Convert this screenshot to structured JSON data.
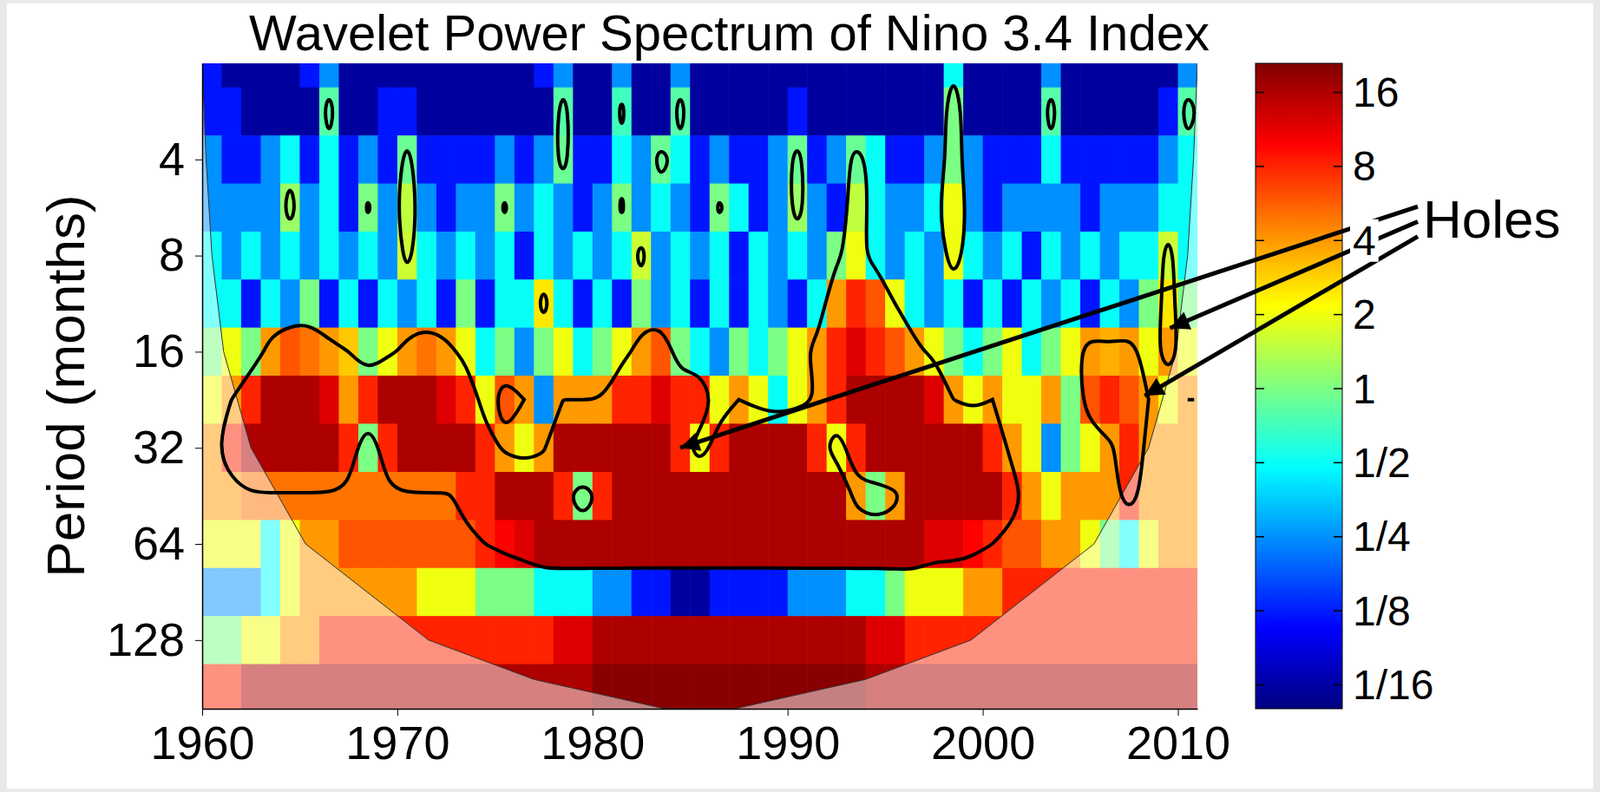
{
  "chart_data": {
    "type": "heatmap",
    "title": "Wavelet Power Spectrum of Nino 3.4 Index",
    "y_label": "Period (months)",
    "log": "y",
    "xlim": [
      1960,
      2011
    ],
    "xticks": [
      1960,
      1970,
      1980,
      1990,
      2000,
      2010
    ],
    "ylim": [
      2,
      210
    ],
    "yticks": [
      4,
      8,
      16,
      32,
      64,
      128
    ],
    "x": [
      1960.5,
      1961.5,
      1962.5,
      1963.5,
      1964.5,
      1965.5,
      1966.5,
      1967.5,
      1968.5,
      1969.5,
      1970.5,
      1971.5,
      1972.5,
      1973.5,
      1974.5,
      1975.5,
      1976.5,
      1977.5,
      1978.5,
      1979.5,
      1980.5,
      1981.5,
      1982.5,
      1983.5,
      1984.5,
      1985.5,
      1986.5,
      1987.5,
      1988.5,
      1989.5,
      1990.5,
      1991.5,
      1992.5,
      1993.5,
      1994.5,
      1995.5,
      1996.5,
      1997.5,
      1998.5,
      1999.5,
      2000.5,
      2001.5,
      2002.5,
      2003.5,
      2004.5,
      2005.5,
      2006.5,
      2007.5,
      2008.5,
      2009.5,
      2010.5
    ],
    "y": [
      2,
      2.83,
      4,
      5.66,
      8,
      11.3,
      16,
      22.6,
      32,
      45.3,
      64,
      90.5,
      128,
      181
    ],
    "values": [
      [
        0.12,
        0.06,
        0.06,
        0.06,
        0.06,
        0.12,
        0.25,
        0.06,
        0.06,
        0.06,
        0.06,
        0.06,
        0.06,
        0.06,
        0.06,
        0.06,
        0.06,
        0.12,
        0.25,
        0.06,
        0.06,
        0.25,
        0.06,
        0.06,
        0.25,
        0.06,
        0.06,
        0.06,
        0.06,
        0.06,
        0.06,
        0.06,
        0.06,
        0.06,
        0.06,
        0.06,
        0.06,
        0.06,
        0.5,
        0.06,
        0.06,
        0.06,
        0.06,
        0.25,
        0.06,
        0.06,
        0.06,
        0.06,
        0.06,
        0.06,
        0.25
      ],
      [
        0.12,
        0.12,
        0.06,
        0.06,
        0.06,
        0.06,
        0.8,
        0.06,
        0.06,
        0.12,
        0.12,
        0.06,
        0.06,
        0.06,
        0.06,
        0.06,
        0.06,
        0.06,
        0.8,
        0.06,
        0.06,
        0.7,
        0.06,
        0.06,
        0.8,
        0.06,
        0.06,
        0.06,
        0.06,
        0.06,
        0.12,
        0.06,
        0.06,
        0.06,
        0.06,
        0.06,
        0.06,
        0.06,
        1,
        0.06,
        0.06,
        0.06,
        0.06,
        0.8,
        0.06,
        0.06,
        0.06,
        0.06,
        0.06,
        0.12,
        0.8
      ],
      [
        0.25,
        0.12,
        0.12,
        0.25,
        0.5,
        0.12,
        0.5,
        0.12,
        0.25,
        0.12,
        0.9,
        0.12,
        0.12,
        0.12,
        0.12,
        0.25,
        0.12,
        0.25,
        0.9,
        0.12,
        0.12,
        0.5,
        0.25,
        0.9,
        0.5,
        0.12,
        0.25,
        0.12,
        0.12,
        0.25,
        0.9,
        0.12,
        0.25,
        0.9,
        0.5,
        0.12,
        0.12,
        0.25,
        1,
        0.25,
        0.12,
        0.12,
        0.12,
        0.5,
        0.12,
        0.12,
        0.12,
        0.12,
        0.12,
        0.25,
        0.5
      ],
      [
        0.25,
        0.25,
        0.25,
        0.25,
        1.2,
        0.25,
        0.5,
        0.12,
        1,
        0.25,
        1.5,
        0.25,
        0.12,
        0.25,
        0.25,
        1,
        0.25,
        0.5,
        0.25,
        0.12,
        0.25,
        1,
        0.25,
        0.5,
        0.25,
        0.12,
        1,
        0.5,
        0.12,
        0.25,
        1.2,
        0.25,
        0.12,
        1.5,
        0.5,
        0.25,
        0.25,
        0.5,
        2,
        0.25,
        0.12,
        0.25,
        0.25,
        0.25,
        0.25,
        0.12,
        0.25,
        0.25,
        0.25,
        0.5,
        0.5
      ],
      [
        0.5,
        0.25,
        0.5,
        0.25,
        0.5,
        0.25,
        0.5,
        0.25,
        0.5,
        0.25,
        1.6,
        0.5,
        0.25,
        0.5,
        0.25,
        0.5,
        0.12,
        0.5,
        0.25,
        0.5,
        0.25,
        0.5,
        1.6,
        0.25,
        0.5,
        0.25,
        0.5,
        0.12,
        0.5,
        0.25,
        0.5,
        0.25,
        1,
        2,
        0.5,
        0.25,
        0.5,
        0.25,
        2,
        0.5,
        0.25,
        0.5,
        0.12,
        0.5,
        0.25,
        0.5,
        0.25,
        0.5,
        0.5,
        1.6,
        0.5
      ],
      [
        0.5,
        0.5,
        0.12,
        0.5,
        0.25,
        1,
        0.12,
        0.5,
        0.12,
        0.5,
        0.25,
        0.5,
        0.12,
        1,
        0.12,
        0.5,
        0.5,
        2.5,
        0.5,
        0.12,
        0.5,
        0.12,
        1,
        0.25,
        0.5,
        0.12,
        0.5,
        0.12,
        0.5,
        0.25,
        0.12,
        0.5,
        4,
        8,
        6,
        2,
        0.5,
        0.25,
        0.5,
        0.12,
        0.5,
        0.12,
        0.5,
        0.25,
        0.5,
        0.12,
        0.5,
        0.25,
        1,
        2.5,
        1
      ],
      [
        1,
        2,
        1,
        4,
        6,
        5,
        4,
        3,
        1,
        2,
        4,
        5,
        4,
        2,
        0.5,
        1,
        0.25,
        1,
        2,
        0.5,
        1,
        2,
        4,
        6,
        1,
        0.5,
        0.25,
        1,
        0.5,
        1,
        2,
        4,
        8,
        12,
        8,
        6,
        4,
        2,
        1,
        0.5,
        1,
        2,
        0.5,
        1,
        2,
        4,
        3.5,
        4,
        2,
        4,
        2
      ],
      [
        2,
        4,
        8,
        16,
        16,
        16,
        12,
        4,
        8,
        16,
        16,
        16,
        12,
        8,
        2,
        6,
        4,
        0.25,
        4,
        4,
        4,
        8,
        8,
        12,
        8,
        8,
        2,
        4,
        2,
        0.5,
        2,
        4,
        8,
        16,
        16,
        16,
        16,
        12,
        4,
        2,
        4,
        2,
        2,
        4,
        1,
        6,
        8,
        6,
        4,
        2,
        4
      ],
      [
        4,
        8,
        16,
        16,
        16,
        16,
        16,
        8,
        1,
        8,
        16,
        16,
        16,
        16,
        8,
        4,
        2,
        4,
        16,
        16,
        16,
        16,
        16,
        16,
        8,
        2,
        8,
        16,
        16,
        16,
        16,
        8,
        2,
        8,
        16,
        16,
        16,
        16,
        16,
        16,
        8,
        4,
        2,
        0.25,
        1,
        2,
        4,
        8,
        4,
        4,
        4
      ],
      [
        4,
        4,
        5,
        5,
        5,
        5,
        5,
        5,
        5,
        5,
        5,
        5,
        5,
        8,
        8,
        16,
        16,
        16,
        8,
        1,
        8,
        16,
        16,
        16,
        16,
        16,
        16,
        16,
        16,
        16,
        16,
        16,
        16,
        4,
        1,
        4,
        16,
        16,
        16,
        16,
        16,
        8,
        4,
        2,
        4,
        4,
        4,
        8,
        4,
        4,
        4
      ],
      [
        2,
        2,
        2,
        0.5,
        2,
        4,
        4,
        6,
        6,
        6,
        6,
        6,
        6,
        6,
        8,
        10,
        12,
        16,
        16,
        16,
        16,
        16,
        16,
        16,
        16,
        16,
        16,
        16,
        16,
        16,
        16,
        16,
        16,
        16,
        16,
        16,
        16,
        12,
        12,
        10,
        8,
        6,
        6,
        4,
        4,
        2,
        1,
        0.5,
        2,
        4,
        4
      ],
      [
        0.25,
        0.25,
        0.25,
        0.5,
        2,
        4,
        4,
        4,
        4,
        4,
        4,
        2,
        2,
        2,
        1,
        1,
        1,
        0.5,
        0.5,
        0.5,
        0.25,
        0.25,
        0.12,
        0.12,
        0.06,
        0.06,
        0.12,
        0.12,
        0.12,
        0.12,
        0.25,
        0.25,
        0.25,
        0.5,
        0.5,
        1,
        2,
        2,
        2,
        4,
        4,
        8,
        8,
        8,
        8,
        8,
        8,
        8,
        8,
        8,
        8
      ],
      [
        1,
        1,
        2,
        2,
        4,
        4,
        8,
        8,
        8,
        8,
        8,
        8,
        8,
        8,
        8,
        8,
        8,
        8,
        12,
        12,
        16,
        16,
        16,
        16,
        16,
        16,
        16,
        16,
        16,
        16,
        16,
        16,
        16,
        16,
        12,
        12,
        8,
        8,
        8,
        8,
        8,
        8,
        8,
        8,
        8,
        8,
        8,
        8,
        8,
        8,
        8
      ],
      [
        8,
        8,
        16,
        16,
        16,
        16,
        16,
        16,
        16,
        16,
        16,
        16,
        16,
        16,
        16,
        16,
        16,
        16,
        16,
        16,
        20,
        20,
        20,
        20,
        20,
        20,
        20,
        20,
        20,
        20,
        20,
        20,
        20,
        20,
        16,
        16,
        16,
        16,
        16,
        16,
        16,
        16,
        16,
        16,
        16,
        16,
        16,
        16,
        16,
        16,
        16
      ]
    ],
    "significance": [
      0.6,
      0.6,
      0.7,
      0.9,
      1.3,
      2,
      3,
      4,
      5,
      6,
      8,
      15,
      30,
      40
    ],
    "coi": {
      "x": [
        1960,
        1960.2,
        1960.5,
        1961.1,
        1962.5,
        1965.3,
        1971.6,
        1977,
        1983.7,
        1987.3,
        1994,
        1999.4,
        2005.7,
        2008.5,
        2009.9,
        2010.5,
        2010.8,
        2011
      ],
      "y": [
        2,
        4,
        8,
        16,
        32,
        64,
        128,
        170,
        210,
        210,
        170,
        128,
        64,
        32,
        16,
        8,
        4,
        2
      ]
    },
    "colorbar": {
      "range": [
        0.05,
        21
      ],
      "ticks": [
        {
          "value": 0.0625,
          "label": "1/16"
        },
        {
          "value": 0.125,
          "label": "1/8"
        },
        {
          "value": 0.25,
          "label": "1/4"
        },
        {
          "value": 0.5,
          "label": "1/2"
        },
        1,
        2,
        4,
        8,
        16
      ]
    },
    "annotations": [
      {
        "text": "Holes",
        "x": [
          1984.5,
          2009.6,
          2008.3
        ],
        "y": [
          32,
          13.5,
          22
        ]
      }
    ]
  }
}
